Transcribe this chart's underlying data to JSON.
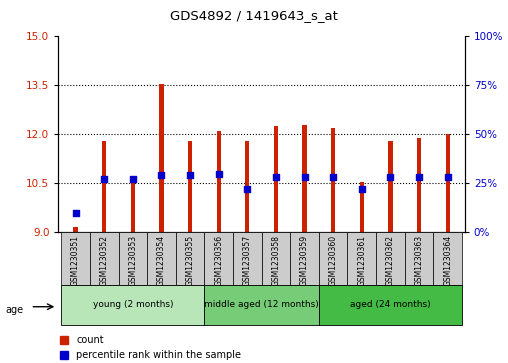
{
  "title": "GDS4892 / 1419643_s_at",
  "samples": [
    "GSM1230351",
    "GSM1230352",
    "GSM1230353",
    "GSM1230354",
    "GSM1230355",
    "GSM1230356",
    "GSM1230357",
    "GSM1230358",
    "GSM1230359",
    "GSM1230360",
    "GSM1230361",
    "GSM1230362",
    "GSM1230363",
    "GSM1230364"
  ],
  "count_values": [
    9.15,
    11.8,
    10.6,
    13.55,
    11.78,
    12.1,
    11.8,
    12.25,
    12.3,
    12.2,
    10.55,
    11.78,
    11.9,
    12.0
  ],
  "percentile_values": [
    10,
    27,
    27,
    29,
    29,
    30,
    22,
    28,
    28,
    28,
    22,
    28,
    28,
    28
  ],
  "ylim_left": [
    9,
    15
  ],
  "ylim_right": [
    0,
    100
  ],
  "yticks_left": [
    9,
    10.5,
    12,
    13.5,
    15
  ],
  "yticks_right": [
    0,
    25,
    50,
    75,
    100
  ],
  "groups": [
    {
      "label": "young (2 months)",
      "start": 0,
      "end": 5,
      "color": "#b8e6b8"
    },
    {
      "label": "middle aged (12 months)",
      "start": 5,
      "end": 9,
      "color": "#77cc77"
    },
    {
      "label": "aged (24 months)",
      "start": 9,
      "end": 14,
      "color": "#44bb44"
    }
  ],
  "bar_color": "#cc2200",
  "dot_color": "#0000cc",
  "bar_bottom": 9,
  "bar_width": 0.15,
  "dot_size": 20,
  "legend_labels": [
    "count",
    "percentile rank within the sample"
  ],
  "age_label": "age",
  "tick_label_color_left": "#cc2200",
  "tick_label_color_right": "#0000cc",
  "xlabel_area_color": "#cccccc",
  "grid_yticks": [
    10.5,
    12,
    13.5
  ]
}
